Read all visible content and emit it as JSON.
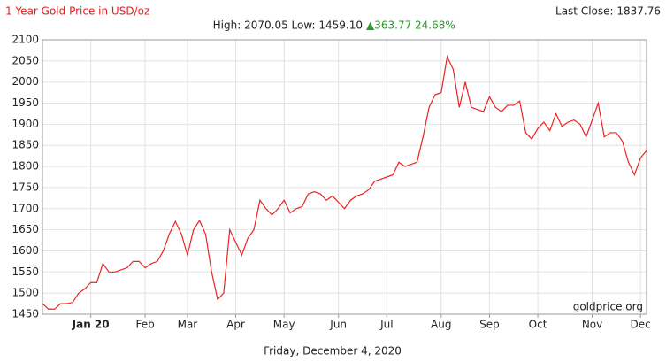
{
  "chart_data": {
    "type": "line",
    "title": "1 Year Gold Price in USD/oz",
    "last_close": "Last Close: 1837.76",
    "high_low": "High: 2070.05 Low: 1459.10",
    "change": "▲363.77 24.68%",
    "date": "Friday, December 4, 2020",
    "watermark": "goldprice.org",
    "color": "#ee2222",
    "grid": true,
    "values": [
      1475,
      1462,
      1462,
      1475,
      1475,
      1478,
      1500,
      1510,
      1525,
      1525,
      1570,
      1550,
      1550,
      1555,
      1560,
      1575,
      1575,
      1560,
      1570,
      1575,
      1600,
      1640,
      1670,
      1640,
      1590,
      1650,
      1672,
      1640,
      1550,
      1485,
      1500,
      1650,
      1620,
      1590,
      1630,
      1650,
      1720,
      1700,
      1685,
      1700,
      1720,
      1690,
      1700,
      1705,
      1735,
      1740,
      1735,
      1720,
      1730,
      1715,
      1700,
      1720,
      1730,
      1735,
      1745,
      1765,
      1770,
      1775,
      1780,
      1810,
      1800,
      1805,
      1810,
      1870,
      1940,
      1970,
      1975,
      2060,
      2030,
      1940,
      2000,
      1940,
      1935,
      1930,
      1965,
      1940,
      1930,
      1945,
      1945,
      1955,
      1880,
      1865,
      1890,
      1905,
      1885,
      1925,
      1895,
      1905,
      1910,
      1900,
      1870,
      1910,
      1950,
      1870,
      1880,
      1880,
      1860,
      1810,
      1780,
      1820,
      1838
    ],
    "xlim": [
      0,
      100
    ],
    "xticks": [
      {
        "value": 8,
        "label": "Jan 20"
      },
      {
        "value": 17,
        "label": "Feb"
      },
      {
        "value": 24,
        "label": "Mar"
      },
      {
        "value": 32,
        "label": "Apr"
      },
      {
        "value": 40,
        "label": "May"
      },
      {
        "value": 49,
        "label": "Jun"
      },
      {
        "value": 57,
        "label": "Jul"
      },
      {
        "value": 66,
        "label": "Aug"
      },
      {
        "value": 74,
        "label": "Sep"
      },
      {
        "value": 82,
        "label": "Oct"
      },
      {
        "value": 91,
        "label": "Nov"
      },
      {
        "value": 99,
        "label": "Dec"
      }
    ],
    "ylim": [
      1450,
      2100
    ],
    "yticks": [
      1450,
      1500,
      1550,
      1600,
      1650,
      1700,
      1750,
      1800,
      1850,
      1900,
      1950,
      2000,
      2050,
      2100
    ]
  }
}
